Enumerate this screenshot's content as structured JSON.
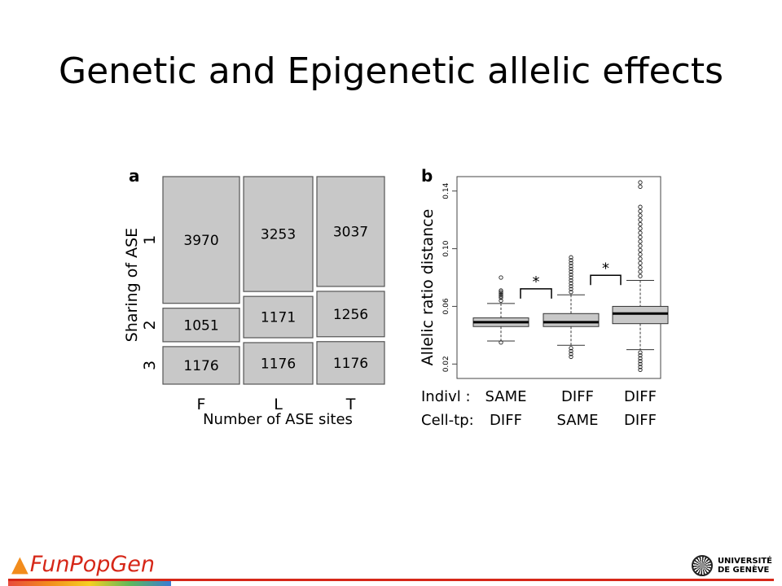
{
  "slide": {
    "title": "Genetic and Epigenetic allelic effects",
    "footer_logo": "FunPopGen",
    "university_line1": "UNIVERSITÉ",
    "university_line2": "DE GENÈVE",
    "colors": {
      "box_fill": "#c8c8c8",
      "box_stroke": "#555555",
      "footer_red": "#d62718"
    }
  },
  "chart_data": [
    {
      "panel_label": "a",
      "type": "mosaic",
      "ylabel": "Sharing of ASE",
      "xlabel": "Number of ASE sites",
      "columns": [
        "F",
        "L",
        "T"
      ],
      "rows": [
        "1",
        "2",
        "3"
      ],
      "values": [
        [
          3970,
          1051,
          1176
        ],
        [
          3253,
          1171,
          1176
        ],
        [
          3037,
          1256,
          1176
        ]
      ]
    },
    {
      "panel_label": "b",
      "type": "boxplot",
      "ylabel": "Allelic ratio distance",
      "ylim": [
        0.01,
        0.15
      ],
      "yticks": [
        0.02,
        0.06,
        0.1,
        0.14
      ],
      "ytick_labels": [
        "0.02",
        "0.06",
        "0.10",
        "0.14"
      ],
      "row_labels": [
        "Indivl  :",
        "Cell-tp:"
      ],
      "groups": [
        {
          "indivl": "SAME",
          "celltp": "DIFF",
          "whisker_low": 0.036,
          "q1": 0.046,
          "median": 0.049,
          "q3": 0.052,
          "whisker_high": 0.062,
          "outliers_high": [
            0.064,
            0.066,
            0.067,
            0.068,
            0.069,
            0.07,
            0.071,
            0.08
          ],
          "outliers_low": [
            0.035
          ]
        },
        {
          "indivl": "DIFF",
          "celltp": "SAME",
          "whisker_low": 0.033,
          "q1": 0.046,
          "median": 0.049,
          "q3": 0.055,
          "whisker_high": 0.068,
          "outliers_high": [
            0.07,
            0.072,
            0.074,
            0.076,
            0.078,
            0.08,
            0.082,
            0.084,
            0.086,
            0.088,
            0.09,
            0.092,
            0.094
          ],
          "outliers_low": [
            0.031,
            0.029,
            0.027,
            0.025
          ]
        },
        {
          "indivl": "DIFF",
          "celltp": "DIFF",
          "whisker_low": 0.03,
          "q1": 0.048,
          "median": 0.055,
          "q3": 0.06,
          "whisker_high": 0.078,
          "outliers_high": [
            0.081,
            0.084,
            0.087,
            0.09,
            0.093,
            0.096,
            0.099,
            0.102,
            0.105,
            0.108,
            0.111,
            0.114,
            0.117,
            0.12,
            0.123,
            0.126,
            0.129,
            0.143,
            0.146
          ],
          "outliers_low": [
            0.028,
            0.026,
            0.024,
            0.022,
            0.02,
            0.018,
            0.016
          ]
        }
      ],
      "significance": [
        "*",
        "*"
      ]
    }
  ]
}
